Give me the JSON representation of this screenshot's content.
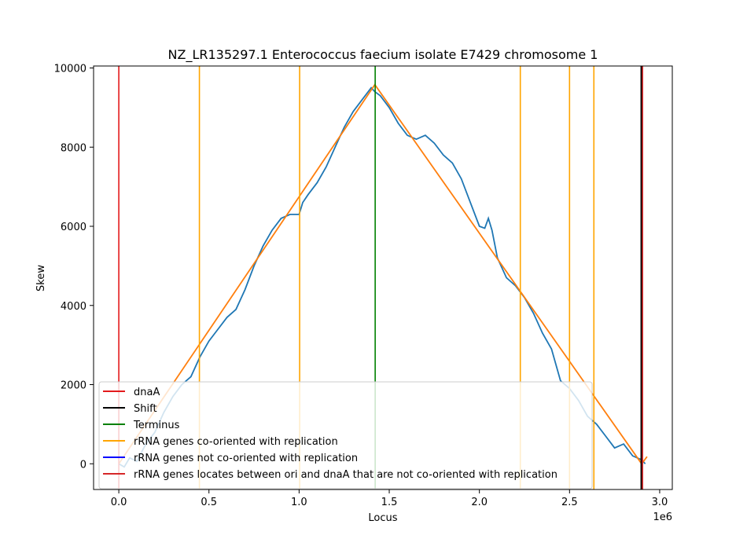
{
  "chart_data": {
    "type": "line",
    "title": "NZ_LR135297.1 Enterococcus faecium isolate E7429 chromosome 1",
    "xlabel": "Locus",
    "ylabel": "Skew",
    "x_offset_label": "1e6",
    "xlim": [
      -0.14,
      3.07
    ],
    "ylim": [
      -650,
      10050
    ],
    "x_unit": "1e6",
    "xticks": [
      0.0,
      0.5,
      1.0,
      1.5,
      2.0,
      2.5,
      3.0
    ],
    "xtick_labels": [
      "0.0",
      "0.5",
      "1.0",
      "1.5",
      "2.0",
      "2.5",
      "3.0"
    ],
    "yticks": [
      0,
      2000,
      4000,
      6000,
      8000,
      10000
    ],
    "ytick_labels": [
      "0",
      "2000",
      "4000",
      "6000",
      "8000",
      "10000"
    ],
    "grid": false,
    "legend_position": "lower-left",
    "colors": {
      "skew": "#1f77b4",
      "fit": "#ff7f0e",
      "dnaA": "#e31a1c",
      "shift": "#000000",
      "terminus": "#008000",
      "rrna_co": "#ffa500",
      "rrna_not": "#0000ff",
      "rrna_between": "#d62728"
    },
    "skew_series": {
      "name": "",
      "x": [
        0.0,
        0.03,
        0.06,
        0.1,
        0.15,
        0.2,
        0.25,
        0.3,
        0.35,
        0.4,
        0.45,
        0.5,
        0.55,
        0.6,
        0.65,
        0.7,
        0.75,
        0.8,
        0.85,
        0.9,
        0.95,
        1.0,
        1.02,
        1.05,
        1.1,
        1.15,
        1.2,
        1.25,
        1.3,
        1.35,
        1.4,
        1.42,
        1.45,
        1.5,
        1.55,
        1.6,
        1.65,
        1.7,
        1.75,
        1.8,
        1.85,
        1.9,
        1.95,
        2.0,
        2.03,
        2.05,
        2.07,
        2.1,
        2.15,
        2.2,
        2.25,
        2.3,
        2.35,
        2.4,
        2.45,
        2.5,
        2.55,
        2.6,
        2.65,
        2.7,
        2.75,
        2.8,
        2.85,
        2.9,
        2.92
      ],
      "y": [
        0,
        -80,
        150,
        60,
        500,
        800,
        1300,
        1700,
        2000,
        2200,
        2700,
        3100,
        3400,
        3700,
        3900,
        4400,
        5000,
        5500,
        5900,
        6200,
        6300,
        6300,
        6600,
        6800,
        7100,
        7500,
        8000,
        8500,
        8900,
        9200,
        9500,
        9400,
        9300,
        9000,
        8600,
        8300,
        8200,
        8300,
        8100,
        7800,
        7600,
        7200,
        6600,
        6000,
        5950,
        6200,
        5900,
        5200,
        4700,
        4500,
        4200,
        3800,
        3300,
        2900,
        2100,
        1900,
        1600,
        1200,
        1000,
        700,
        400,
        500,
        200,
        100,
        0
      ]
    },
    "fit_series": {
      "name": "",
      "x": [
        0.0,
        1.42,
        2.9,
        2.93
      ],
      "y": [
        0,
        9580,
        0,
        180
      ]
    },
    "vlines": [
      {
        "key": "dnaA",
        "x": 0.0
      },
      {
        "key": "rrna_co",
        "x": 0.447
      },
      {
        "key": "rrna_co",
        "x": 1.003
      },
      {
        "key": "terminus",
        "x": 1.422
      },
      {
        "key": "rrna_co",
        "x": 2.227
      },
      {
        "key": "rrna_co",
        "x": 2.5
      },
      {
        "key": "rrna_co",
        "x": 2.635
      },
      {
        "key": "shift",
        "x": 2.898
      },
      {
        "key": "rrna_between",
        "x": 2.905
      }
    ],
    "legend": [
      {
        "key": "dnaA",
        "label": "dnaA"
      },
      {
        "key": "shift",
        "label": "Shift"
      },
      {
        "key": "terminus",
        "label": "Terminus"
      },
      {
        "key": "rrna_co",
        "label": "rRNA genes co-oriented with replication"
      },
      {
        "key": "rrna_not",
        "label": "rRNA genes not co-oriented with replication"
      },
      {
        "key": "rrna_between",
        "label": "rRNA genes locates between ori and dnaA that are not co-oriented with replication"
      }
    ]
  }
}
